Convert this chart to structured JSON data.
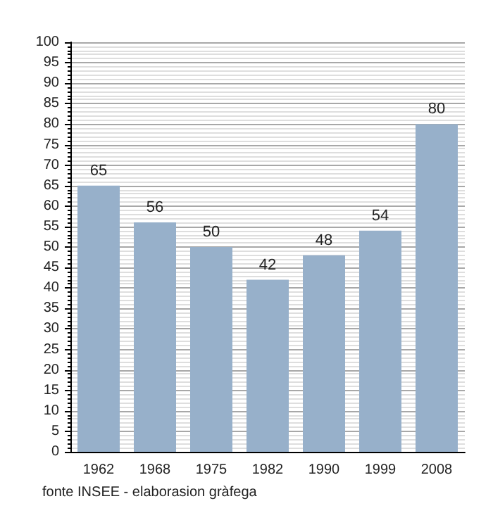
{
  "chart_data": {
    "type": "bar",
    "categories": [
      "1962",
      "1968",
      "1975",
      "1982",
      "1990",
      "1999",
      "2008"
    ],
    "values": [
      65,
      56,
      50,
      42,
      48,
      54,
      80
    ],
    "color": "#97b0ca",
    "ylim": [
      0,
      100
    ],
    "yticks": [
      0,
      5,
      10,
      15,
      20,
      25,
      30,
      35,
      40,
      45,
      50,
      55,
      60,
      65,
      70,
      75,
      80,
      85,
      90,
      95,
      100
    ],
    "grid": true,
    "data_labels": true,
    "annotations": [
      "fonte INSEE - elaborasion gràfega"
    ]
  }
}
